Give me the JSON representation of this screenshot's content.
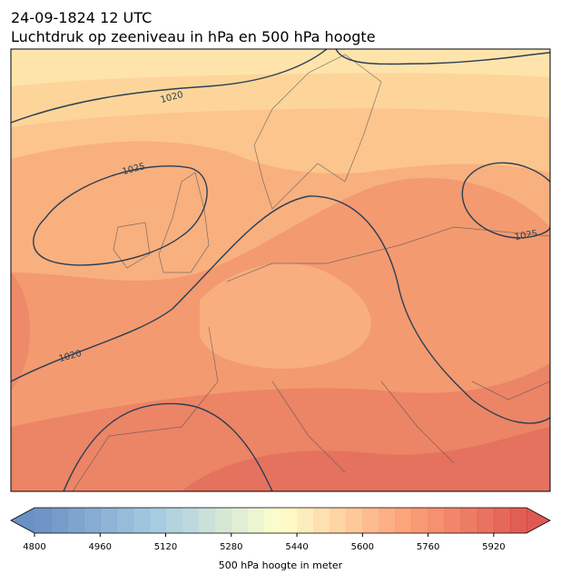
{
  "title": "24-09-1824 12 UTC",
  "subtitle": "Luchtdruk op zeeniveau in hPa en 500 hPa hoogte",
  "contour_labels": [
    "1020",
    "1025",
    "1025",
    "1020"
  ],
  "colorbar": {
    "range": [
      4800,
      6000
    ],
    "ticks": [
      4800,
      4960,
      5120,
      5280,
      5440,
      5600,
      5760,
      5920
    ],
    "label": "500 hPa hoogte in meter"
  }
}
